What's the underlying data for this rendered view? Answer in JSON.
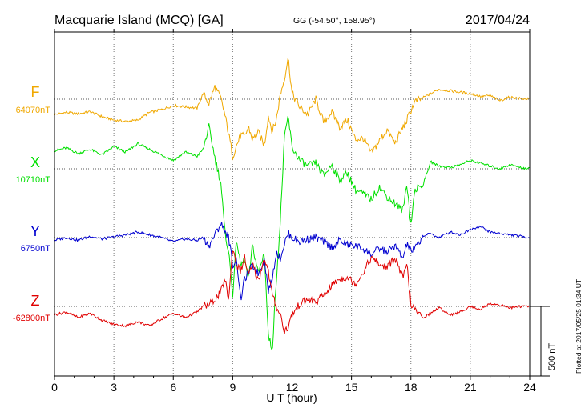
{
  "header": {
    "station": "Macquarie Island (MCQ)  [GA]",
    "coords": "GG (-54.50°, 158.95°)",
    "date": "2017/04/24"
  },
  "footer": {
    "plotted": "Plotted at 2017/05/25 01:34 UT"
  },
  "chart_data": {
    "type": "line",
    "xlabel": "U T (hour)",
    "xlim": [
      0,
      24
    ],
    "xticks": [
      0,
      3,
      6,
      9,
      12,
      15,
      18,
      21,
      24
    ],
    "x_tick_labels": [
      "0",
      "3",
      "6",
      "9",
      "12",
      "15",
      "18",
      "21",
      "24"
    ],
    "scale_bar": {
      "label": "500 nT",
      "value": 500
    },
    "grid": true,
    "series": [
      {
        "name": "F",
        "baseline_label": "64070nT",
        "color": "#f0a800",
        "x": [
          0,
          0.6,
          1.2,
          1.8,
          2.4,
          3,
          3.6,
          4.2,
          4.8,
          5.4,
          6,
          6.6,
          7.2,
          7.5,
          7.8,
          8.1,
          8.4,
          8.6,
          8.8,
          9,
          9.2,
          9.4,
          9.6,
          9.8,
          10,
          10.3,
          10.6,
          10.8,
          11,
          11.2,
          11.4,
          11.6,
          11.8,
          12,
          12.4,
          12.8,
          13.2,
          13.6,
          14,
          14.4,
          14.8,
          15.2,
          15.6,
          16,
          16.4,
          16.8,
          17.2,
          17.6,
          17.8,
          18,
          18.2,
          18.6,
          19,
          19.4,
          20,
          20.5,
          21,
          21.5,
          22,
          22.5,
          23,
          23.5,
          24
        ],
        "values": [
          -110,
          -95,
          -105,
          -90,
          -125,
          -150,
          -160,
          -150,
          -95,
          -75,
          -45,
          -55,
          -65,
          40,
          -30,
          90,
          5,
          -110,
          -250,
          -410,
          -330,
          -260,
          -270,
          -200,
          -290,
          -240,
          -330,
          -120,
          -230,
          -150,
          30,
          140,
          300,
          40,
          -60,
          -110,
          0,
          -170,
          -90,
          -200,
          -150,
          -290,
          -280,
          -390,
          -300,
          -220,
          -320,
          -200,
          -150,
          -80,
          -20,
          10,
          40,
          70,
          60,
          50,
          40,
          20,
          25,
          -10,
          15,
          5,
          0
        ]
      },
      {
        "name": "X",
        "baseline_label": "10710nT",
        "color": "#00e000",
        "x": [
          0,
          0.6,
          1.2,
          1.8,
          2.4,
          3,
          3.6,
          4.2,
          4.8,
          5.4,
          6,
          6.6,
          7.2,
          7.5,
          7.8,
          8.1,
          8.4,
          8.6,
          8.8,
          9,
          9.2,
          9.4,
          9.6,
          9.8,
          10,
          10.3,
          10.6,
          10.8,
          11,
          11.2,
          11.4,
          11.6,
          11.8,
          12,
          12.4,
          12.8,
          13.2,
          13.6,
          14,
          14.4,
          14.8,
          15.2,
          15.6,
          16,
          16.4,
          16.8,
          17.2,
          17.6,
          17.8,
          18,
          18.2,
          18.6,
          19,
          19.4,
          20,
          20.5,
          21,
          21.5,
          22,
          22.5,
          23,
          23.5,
          24
        ],
        "values": [
          130,
          150,
          110,
          140,
          100,
          160,
          120,
          180,
          140,
          100,
          60,
          120,
          90,
          140,
          300,
          80,
          -100,
          -450,
          -600,
          -900,
          -500,
          -700,
          -650,
          -800,
          -550,
          -750,
          -600,
          -1200,
          -1300,
          -800,
          -400,
          200,
          380,
          150,
          60,
          20,
          40,
          -50,
          30,
          -80,
          -30,
          -150,
          -180,
          -220,
          -130,
          -200,
          -250,
          -300,
          -100,
          -400,
          -150,
          -120,
          50,
          20,
          10,
          30,
          60,
          40,
          20,
          0,
          30,
          10,
          0
        ]
      },
      {
        "name": "Y",
        "baseline_label": "6750nT",
        "color": "#0000d0",
        "x": [
          0,
          0.6,
          1.2,
          1.8,
          2.4,
          3,
          3.6,
          4.2,
          4.8,
          5.4,
          6,
          6.6,
          7.2,
          7.5,
          7.8,
          8.1,
          8.4,
          8.6,
          8.8,
          9,
          9.2,
          9.4,
          9.6,
          9.8,
          10,
          10.3,
          10.6,
          10.8,
          11,
          11.2,
          11.4,
          11.6,
          11.8,
          12,
          12.4,
          12.8,
          13.2,
          13.6,
          14,
          14.4,
          14.8,
          15.2,
          15.6,
          16,
          16.4,
          16.8,
          17.2,
          17.6,
          17.8,
          18,
          18.2,
          18.6,
          19,
          19.4,
          20,
          20.5,
          21,
          21.5,
          22,
          22.5,
          23,
          23.5,
          24
        ],
        "values": [
          -20,
          0,
          -20,
          10,
          -10,
          5,
          20,
          40,
          20,
          0,
          -30,
          -10,
          -20,
          0,
          -60,
          20,
          100,
          50,
          0,
          -200,
          -150,
          -450,
          -300,
          -250,
          -200,
          -260,
          -150,
          -380,
          -300,
          -100,
          -150,
          -50,
          30,
          0,
          -30,
          -10,
          0,
          -30,
          -70,
          -20,
          -50,
          -60,
          -80,
          -120,
          -80,
          -100,
          -60,
          -150,
          -40,
          -100,
          -80,
          10,
          30,
          0,
          40,
          20,
          60,
          80,
          40,
          30,
          20,
          10,
          0
        ]
      },
      {
        "name": "Z",
        "baseline_label": "-62800nT",
        "color": "#e00000",
        "x": [
          0,
          0.6,
          1.2,
          1.8,
          2.4,
          3,
          3.6,
          4.2,
          4.8,
          5.4,
          6,
          6.6,
          7.2,
          7.5,
          7.8,
          8.1,
          8.4,
          8.6,
          8.8,
          9,
          9.2,
          9.4,
          9.6,
          9.8,
          10,
          10.3,
          10.6,
          10.8,
          11,
          11.2,
          11.4,
          11.6,
          11.8,
          12,
          12.4,
          12.8,
          13.2,
          13.6,
          14,
          14.4,
          14.8,
          15.2,
          15.6,
          16,
          16.4,
          16.8,
          17.2,
          17.6,
          17.8,
          18,
          18.2,
          18.6,
          19,
          19.4,
          20,
          20.5,
          21,
          21.5,
          22,
          22.5,
          23,
          23.5,
          24
        ],
        "values": [
          -60,
          -40,
          -80,
          -50,
          -100,
          -130,
          -140,
          -110,
          -140,
          -90,
          -50,
          -80,
          -40,
          0,
          10,
          50,
          100,
          200,
          50,
          420,
          300,
          250,
          350,
          220,
          300,
          180,
          350,
          250,
          80,
          0,
          -50,
          -180,
          -150,
          -60,
          20,
          50,
          30,
          80,
          150,
          200,
          210,
          160,
          250,
          350,
          300,
          280,
          350,
          200,
          300,
          20,
          -30,
          -80,
          -50,
          -10,
          -60,
          -40,
          0,
          -20,
          20,
          10,
          -10,
          0,
          0
        ]
      }
    ]
  }
}
